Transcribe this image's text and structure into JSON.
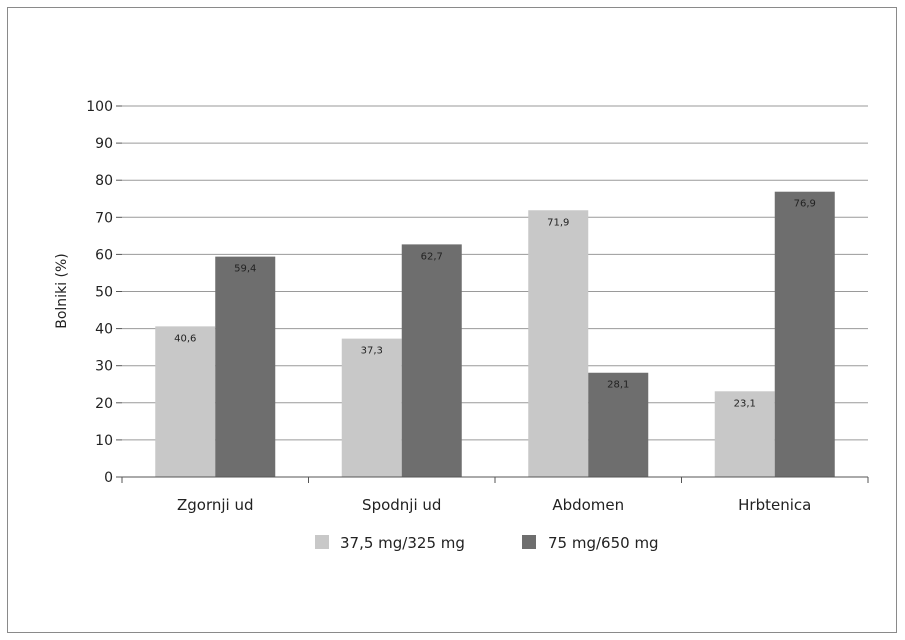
{
  "chart_data": {
    "type": "bar",
    "title": "",
    "xlabel": "",
    "ylabel": "Bolniki (%)",
    "ylim": [
      0,
      100
    ],
    "yticks": [
      0,
      10,
      20,
      30,
      40,
      50,
      60,
      70,
      80,
      90,
      100
    ],
    "categories": [
      "Zgornji ud",
      "Spodnji ud",
      "Abdomen",
      "Hrbtenica"
    ],
    "series": [
      {
        "name": "37,5 mg/325 mg",
        "color": "#c8c8c8",
        "values": [
          40.6,
          37.3,
          71.9,
          23.1
        ],
        "labels": [
          "40,6",
          "37,3",
          "71,9",
          "23,1"
        ]
      },
      {
        "name": "75 mg/650 mg",
        "color": "#6e6e6e",
        "values": [
          59.4,
          62.7,
          28.1,
          76.9
        ],
        "labels": [
          "59,4",
          "62,7",
          "28,1",
          "76,9"
        ]
      }
    ],
    "grid": true,
    "legend": "bottom"
  }
}
